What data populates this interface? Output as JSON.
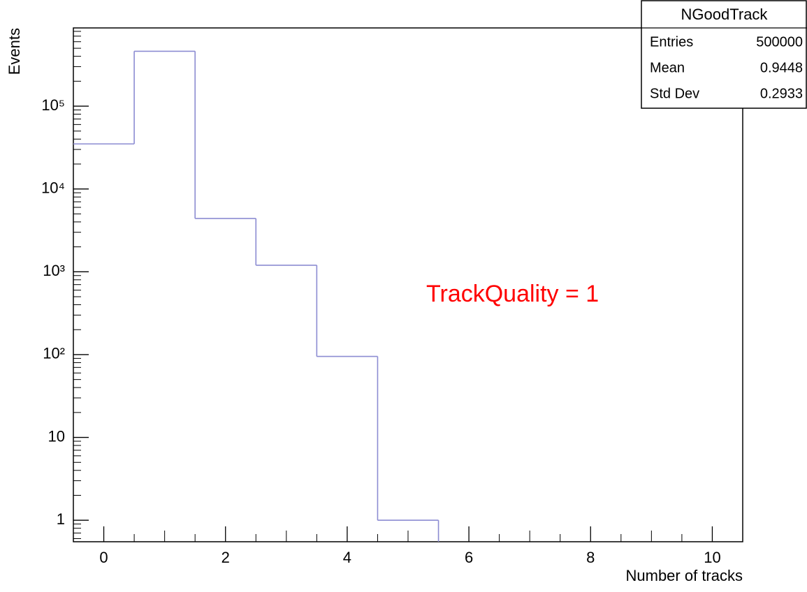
{
  "chart_data": {
    "type": "histogram",
    "x_label": "Number of tracks",
    "y_label": "Events",
    "annotation": "TrackQuality = 1",
    "bins": [
      -0.5,
      0.5,
      1.5,
      2.5,
      3.5,
      4.5,
      5.5,
      6.5,
      7.5,
      8.5,
      9.5,
      10.5
    ],
    "values": [
      35000,
      460000,
      4400,
      1200,
      95,
      1,
      0,
      0,
      0,
      0,
      0
    ],
    "color": "#8c8cd2",
    "xlim": [
      -0.5,
      10.5
    ],
    "xticks": [
      0,
      2,
      4,
      6,
      8,
      10
    ],
    "ylim": [
      0.55,
      880000
    ],
    "log_y": true,
    "minor_ticks": true,
    "yticks": [
      1,
      10,
      {
        "value": 100,
        "label": "10²"
      },
      {
        "value": 1000,
        "label": "10³"
      },
      {
        "value": 10000,
        "label": "10⁴"
      },
      {
        "value": 100000,
        "label": "10⁵"
      }
    ],
    "stats": {
      "title": "NGoodTrack",
      "rows": [
        [
          "Entries",
          500000
        ],
        [
          "Mean",
          0.9448
        ],
        [
          "Std Dev",
          0.2933
        ]
      ]
    }
  }
}
